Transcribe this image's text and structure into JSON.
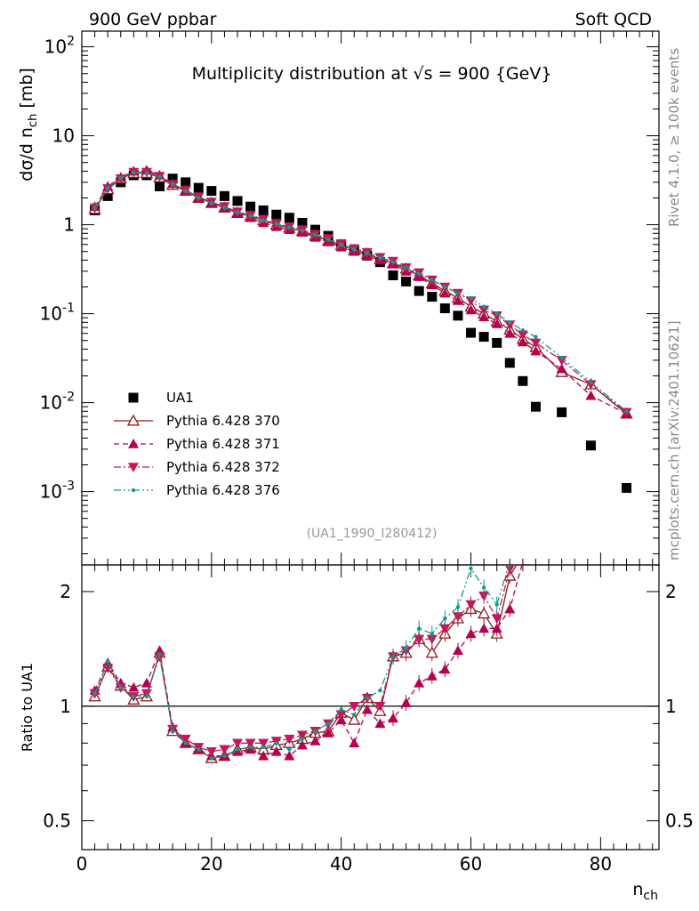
{
  "header": {
    "left": "900 GeV ppbar",
    "right": "Soft QCD",
    "plot_title": "Multiplicity distribution at √s = 900 {GeV}",
    "analysis_tag": "(UA1_1990_I280412)",
    "side_rivet": "Rivet 4.1.0, ≥ 100k events",
    "side_mcplots": "mcplots.cern.ch [arXiv:2401.10621]"
  },
  "chart_data": [
    {
      "type": "scatter",
      "title": "Multiplicity distribution at √s = 900 {GeV}",
      "xlabel": "n_ch",
      "ylabel": "dσ/d n_ch [mb]",
      "yscale": "log",
      "xlim": [
        0,
        89
      ],
      "ylim": [
        0.00015,
        150
      ],
      "yticks": [
        {
          "v": 100,
          "label": "10^2"
        },
        {
          "v": 10,
          "label": "10"
        },
        {
          "v": 1,
          "label": "1"
        },
        {
          "v": 0.1,
          "label": "10^-1"
        },
        {
          "v": 0.01,
          "label": "10^-2"
        },
        {
          "v": 0.001,
          "label": "10^-3"
        }
      ],
      "legend_position": "bottom-left",
      "series": [
        {
          "name": "UA1",
          "color": "#000000",
          "marker": "square",
          "line": "none",
          "x": [
            2,
            4,
            6,
            8,
            10,
            12,
            14,
            16,
            18,
            20,
            22,
            24,
            26,
            28,
            30,
            32,
            34,
            36,
            38,
            40,
            42,
            44,
            46,
            48,
            50,
            52,
            54,
            56,
            58,
            60,
            62,
            64,
            66,
            68,
            70,
            74,
            78.5,
            84
          ],
          "y": [
            1.45,
            2.1,
            3.0,
            3.6,
            3.6,
            2.7,
            3.3,
            3.0,
            2.6,
            2.4,
            2.1,
            1.85,
            1.6,
            1.45,
            1.3,
            1.2,
            1.05,
            0.88,
            0.75,
            0.6,
            0.52,
            0.45,
            0.38,
            0.27,
            0.23,
            0.18,
            0.155,
            0.115,
            0.095,
            0.061,
            0.055,
            0.047,
            0.028,
            0.0175,
            0.009,
            0.0078,
            0.0033,
            0.0011
          ]
        },
        {
          "name": "Pythia 6.428 370",
          "color": "#8b1a1a",
          "marker": "triangle-open",
          "line": "solid",
          "x": [
            2,
            4,
            6,
            8,
            10,
            12,
            14,
            16,
            18,
            20,
            22,
            24,
            26,
            28,
            30,
            32,
            34,
            36,
            38,
            40,
            42,
            44,
            46,
            48,
            50,
            52,
            54,
            56,
            58,
            60,
            62,
            64,
            66,
            68,
            70,
            74,
            78.5,
            84
          ],
          "y": [
            1.5,
            2.5,
            3.3,
            3.8,
            3.8,
            3.4,
            2.8,
            2.4,
            2.0,
            1.75,
            1.55,
            1.35,
            1.25,
            1.12,
            1.0,
            0.92,
            0.85,
            0.75,
            0.66,
            0.59,
            0.52,
            0.47,
            0.41,
            0.37,
            0.32,
            0.27,
            0.22,
            0.18,
            0.15,
            0.12,
            0.1,
            0.082,
            0.066,
            0.052,
            0.042,
            0.022,
            0.016,
            0.0075
          ]
        },
        {
          "name": "Pythia 6.428 371",
          "color": "#b5004e",
          "marker": "triangle-up",
          "line": "dashed",
          "x": [
            2,
            4,
            6,
            8,
            10,
            12,
            14,
            16,
            18,
            20,
            22,
            24,
            26,
            28,
            30,
            32,
            34,
            36,
            38,
            40,
            42,
            44,
            46,
            48,
            50,
            52,
            54,
            56,
            58,
            60,
            62,
            64,
            66,
            68,
            70,
            74,
            78.5,
            84
          ],
          "y": [
            1.6,
            2.7,
            3.4,
            4.0,
            4.1,
            3.6,
            2.9,
            2.4,
            2.0,
            1.75,
            1.55,
            1.35,
            1.2,
            1.05,
            0.95,
            0.88,
            0.82,
            0.72,
            0.64,
            0.56,
            0.5,
            0.45,
            0.4,
            0.36,
            0.3,
            0.26,
            0.21,
            0.17,
            0.14,
            0.11,
            0.092,
            0.077,
            0.06,
            0.048,
            0.038,
            0.024,
            0.012,
            0.0075
          ]
        },
        {
          "name": "Pythia 6.428 372",
          "color": "#c2185b",
          "marker": "triangle-down",
          "line": "dashdot",
          "x": [
            2,
            4,
            6,
            8,
            10,
            12,
            14,
            16,
            18,
            20,
            22,
            24,
            26,
            28,
            30,
            32,
            34,
            36,
            38,
            40,
            42,
            44,
            46,
            48,
            50,
            52,
            54,
            56,
            58,
            60,
            62,
            64,
            66,
            68,
            70,
            74,
            78.5,
            84
          ],
          "y": [
            1.55,
            2.55,
            3.3,
            3.9,
            3.9,
            3.5,
            2.85,
            2.45,
            2.05,
            1.8,
            1.6,
            1.4,
            1.28,
            1.15,
            1.02,
            0.95,
            0.88,
            0.78,
            0.7,
            0.6,
            0.54,
            0.49,
            0.43,
            0.39,
            0.33,
            0.29,
            0.24,
            0.2,
            0.17,
            0.14,
            0.11,
            0.095,
            0.075,
            0.058,
            0.047,
            0.03,
            0.016,
            0.0078
          ]
        },
        {
          "name": "Pythia 6.428 376",
          "color": "#119988",
          "marker": "dot",
          "line": "dashdotdot",
          "x": [
            2,
            4,
            6,
            8,
            10,
            12,
            14,
            16,
            18,
            20,
            22,
            24,
            26,
            28,
            30,
            32,
            34,
            36,
            38,
            40,
            42,
            44,
            46,
            48,
            50,
            52,
            54,
            56,
            58,
            60,
            62,
            64,
            66,
            68,
            70,
            74,
            78.5,
            84
          ],
          "y": [
            1.55,
            2.6,
            3.35,
            3.85,
            3.8,
            3.45,
            2.85,
            2.4,
            2.0,
            1.75,
            1.55,
            1.38,
            1.25,
            1.13,
            1.02,
            0.93,
            0.86,
            0.77,
            0.68,
            0.6,
            0.53,
            0.48,
            0.43,
            0.38,
            0.33,
            0.28,
            0.24,
            0.2,
            0.17,
            0.15,
            0.12,
            0.1,
            0.08,
            0.065,
            0.055,
            0.032,
            0.017,
            0.008
          ]
        }
      ]
    },
    {
      "type": "line",
      "title": "",
      "xlabel": "n_ch",
      "ylabel": "Ratio to UA1",
      "yscale": "log",
      "xlim": [
        0,
        89
      ],
      "ylim": [
        0.42,
        2.35
      ],
      "xticks": [
        0,
        20,
        40,
        60,
        80
      ],
      "yticks": [
        0.5,
        1,
        2
      ],
      "reference_line": 1,
      "series": [
        {
          "name": "Pythia 6.428 370",
          "color": "#8b1a1a",
          "marker": "triangle-open",
          "line": "solid",
          "x": [
            2,
            4,
            6,
            8,
            10,
            12,
            14,
            16,
            18,
            20,
            22,
            24,
            26,
            28,
            30,
            32,
            34,
            36,
            38,
            40,
            42,
            44,
            46,
            48,
            50,
            52,
            54,
            56,
            58,
            60,
            62,
            64,
            66,
            68
          ],
          "y": [
            1.06,
            1.27,
            1.13,
            1.04,
            1.06,
            1.38,
            0.86,
            0.8,
            0.77,
            0.73,
            0.74,
            0.77,
            0.78,
            0.77,
            0.79,
            0.8,
            0.82,
            0.85,
            0.86,
            0.96,
            0.92,
            1.05,
            0.97,
            1.35,
            1.38,
            1.5,
            1.38,
            1.55,
            1.7,
            1.8,
            1.75,
            1.55,
            2.2,
            2.5
          ]
        },
        {
          "name": "Pythia 6.428 371",
          "color": "#b5004e",
          "marker": "triangle-up",
          "line": "dashed",
          "x": [
            2,
            4,
            6,
            8,
            10,
            12,
            14,
            16,
            18,
            20,
            22,
            24,
            26,
            28,
            30,
            32,
            34,
            36,
            38,
            40,
            42,
            44,
            46,
            48,
            50,
            52,
            54,
            56,
            58,
            60,
            62,
            64,
            66,
            68
          ],
          "y": [
            1.1,
            1.3,
            1.15,
            1.12,
            1.15,
            1.4,
            0.88,
            0.8,
            0.77,
            0.74,
            0.74,
            0.76,
            0.77,
            0.74,
            0.76,
            0.74,
            0.79,
            0.81,
            0.85,
            0.92,
            0.8,
            0.98,
            0.9,
            0.93,
            1.02,
            1.15,
            1.2,
            1.25,
            1.4,
            1.55,
            1.6,
            1.6,
            1.8,
            2.4
          ]
        },
        {
          "name": "Pythia 6.428 372",
          "color": "#c2185b",
          "marker": "triangle-down",
          "line": "dashdot",
          "x": [
            2,
            4,
            6,
            8,
            10,
            12,
            14,
            16,
            18,
            20,
            22,
            24,
            26,
            28,
            30,
            32,
            34,
            36,
            38,
            40,
            42,
            44,
            46,
            48,
            50,
            52,
            54,
            56,
            58,
            60,
            62,
            64,
            66,
            68
          ],
          "y": [
            1.08,
            1.26,
            1.12,
            1.06,
            1.08,
            1.35,
            0.87,
            0.82,
            0.78,
            0.76,
            0.77,
            0.8,
            0.8,
            0.8,
            0.81,
            0.82,
            0.84,
            0.86,
            0.9,
            0.95,
            1.0,
            1.05,
            1.0,
            1.35,
            1.4,
            1.5,
            1.5,
            1.6,
            1.72,
            1.85,
            1.95,
            1.7,
            2.3,
            2.6
          ]
        },
        {
          "name": "Pythia 6.428 376",
          "color": "#119988",
          "marker": "dot",
          "line": "dashdotdot",
          "x": [
            2,
            4,
            6,
            8,
            10,
            12,
            14,
            16,
            18,
            20,
            22,
            24,
            26,
            28,
            30,
            32,
            34,
            36,
            38,
            40,
            42,
            44,
            46,
            48,
            50,
            52,
            54,
            56,
            58,
            60,
            62,
            64,
            66,
            68
          ],
          "y": [
            1.08,
            1.31,
            1.12,
            1.06,
            1.06,
            1.37,
            0.86,
            0.8,
            0.77,
            0.73,
            0.74,
            0.77,
            0.78,
            0.78,
            0.8,
            0.77,
            0.82,
            0.86,
            0.9,
            0.98,
            0.95,
            1.05,
            1.1,
            1.35,
            1.42,
            1.6,
            1.55,
            1.7,
            1.82,
            2.3,
            2.05,
            1.85,
            2.4,
            2.6
          ]
        }
      ]
    }
  ]
}
